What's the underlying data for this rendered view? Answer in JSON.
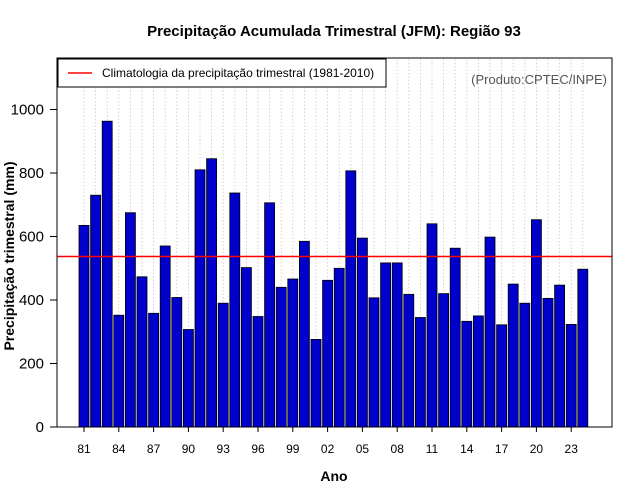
{
  "chart_data": {
    "type": "bar",
    "title": "Precipitação Acumulada Trimestral (JFM): Região 93",
    "xlabel": "Ano",
    "ylabel": "Precipitação trimestral (mm)",
    "ylim": [
      0,
      1100
    ],
    "yticks": [
      0,
      200,
      400,
      600,
      800,
      1000
    ],
    "grid": "vertical dotted",
    "legend_position": "top-left",
    "legend_label": "Climatologia da precipitação trimestral (1981-2010)",
    "credit": "(Produto:CPTEC/INPE)",
    "categories": [
      "81",
      "82",
      "83",
      "84",
      "85",
      "86",
      "87",
      "88",
      "89",
      "90",
      "91",
      "92",
      "93",
      "94",
      "95",
      "96",
      "97",
      "98",
      "99",
      "00",
      "01",
      "02",
      "03",
      "04",
      "05",
      "06",
      "07",
      "08",
      "09",
      "10",
      "11",
      "12",
      "13",
      "14",
      "15",
      "16",
      "17",
      "18",
      "19",
      "20",
      "21",
      "22",
      "23",
      "24"
    ],
    "xtick_labels": [
      "81",
      "84",
      "87",
      "90",
      "93",
      "96",
      "99",
      "02",
      "05",
      "08",
      "11",
      "14",
      "17",
      "20",
      "23"
    ],
    "values": [
      635,
      730,
      963,
      352,
      675,
      473,
      358,
      570,
      408,
      307,
      810,
      845,
      390,
      737,
      502,
      348,
      706,
      440,
      466,
      585,
      276,
      462,
      500,
      807,
      595,
      407,
      517,
      517,
      418,
      345,
      640,
      420,
      563,
      333,
      350,
      598,
      322,
      450,
      390,
      653,
      405,
      447,
      323,
      497
    ],
    "climatology": 537,
    "bar_color": "#0000CD",
    "climatology_color": "#FF0000"
  }
}
